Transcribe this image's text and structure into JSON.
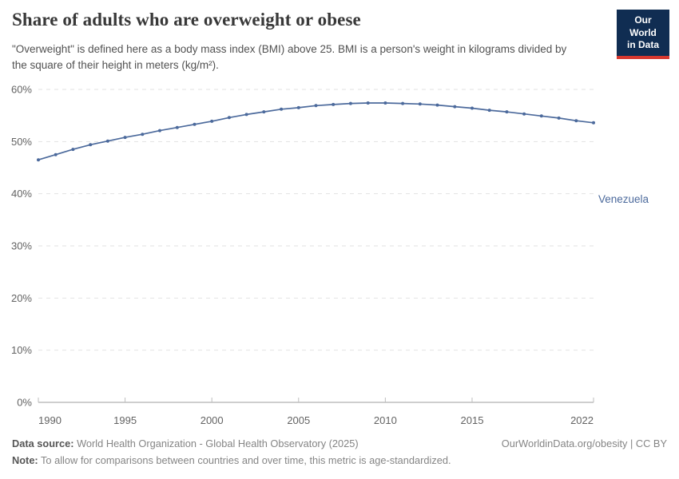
{
  "header": {
    "title": "Share of adults who are overweight or obese",
    "subtitle": "\"Overweight\" is defined here as a body mass index (BMI) above 25. BMI is a person's weight in kilograms divided by the square of their height in meters (kg/m²).",
    "logo": {
      "line1": "Our World",
      "line2": "in Data"
    }
  },
  "chart_data": {
    "type": "line",
    "title": "Share of adults who are overweight or obese",
    "x": [
      1990,
      1991,
      1992,
      1993,
      1994,
      1995,
      1996,
      1997,
      1998,
      1999,
      2000,
      2001,
      2002,
      2003,
      2004,
      2005,
      2006,
      2007,
      2008,
      2009,
      2010,
      2011,
      2012,
      2013,
      2014,
      2015,
      2016,
      2017,
      2018,
      2019,
      2020,
      2021,
      2022
    ],
    "series": [
      {
        "name": "Venezuela",
        "color": "#4c6a9c",
        "values": [
          46.5,
          47.5,
          48.5,
          49.4,
          50.1,
          50.8,
          51.4,
          52.1,
          52.7,
          53.3,
          53.9,
          54.6,
          55.2,
          55.7,
          56.2,
          56.5,
          56.9,
          57.1,
          57.3,
          57.4,
          57.4,
          57.3,
          57.2,
          57.0,
          56.7,
          56.4,
          56.0,
          55.7,
          55.3,
          54.9,
          54.5,
          54.0,
          53.6
        ]
      }
    ],
    "xlabel": "",
    "ylabel": "",
    "xlim": [
      1990,
      2022
    ],
    "ylim": [
      0,
      60
    ],
    "yticks": [
      0,
      10,
      20,
      30,
      40,
      50,
      60
    ],
    "ytick_labels": [
      "0%",
      "10%",
      "20%",
      "30%",
      "40%",
      "50%",
      "60%"
    ],
    "xticks": [
      1990,
      1995,
      2000,
      2005,
      2010,
      2015,
      2022
    ],
    "grid": "horizontal-dashed",
    "legend_position": "end-of-line-label"
  },
  "footer": {
    "datasource_label": "Data source:",
    "datasource_text": " World Health Organization - Global Health Observatory (2025)",
    "link_text": "OurWorldinData.org/obesity | CC BY",
    "note_label": "Note:",
    "note_text": " To allow for comparisons between countries and over time, this metric is age-standardized."
  },
  "colors": {
    "line": "#4c6a9c",
    "entity_label": "#4c6a9c",
    "gridline": "#e2e2e2",
    "axis": "#9e9e9e",
    "tick": "#bdbdbd",
    "tick_label": "#636363",
    "title": "#383838",
    "subtitle": "#515151",
    "logo_bg": "#102d52",
    "logo_stripe": "#d7382f"
  }
}
